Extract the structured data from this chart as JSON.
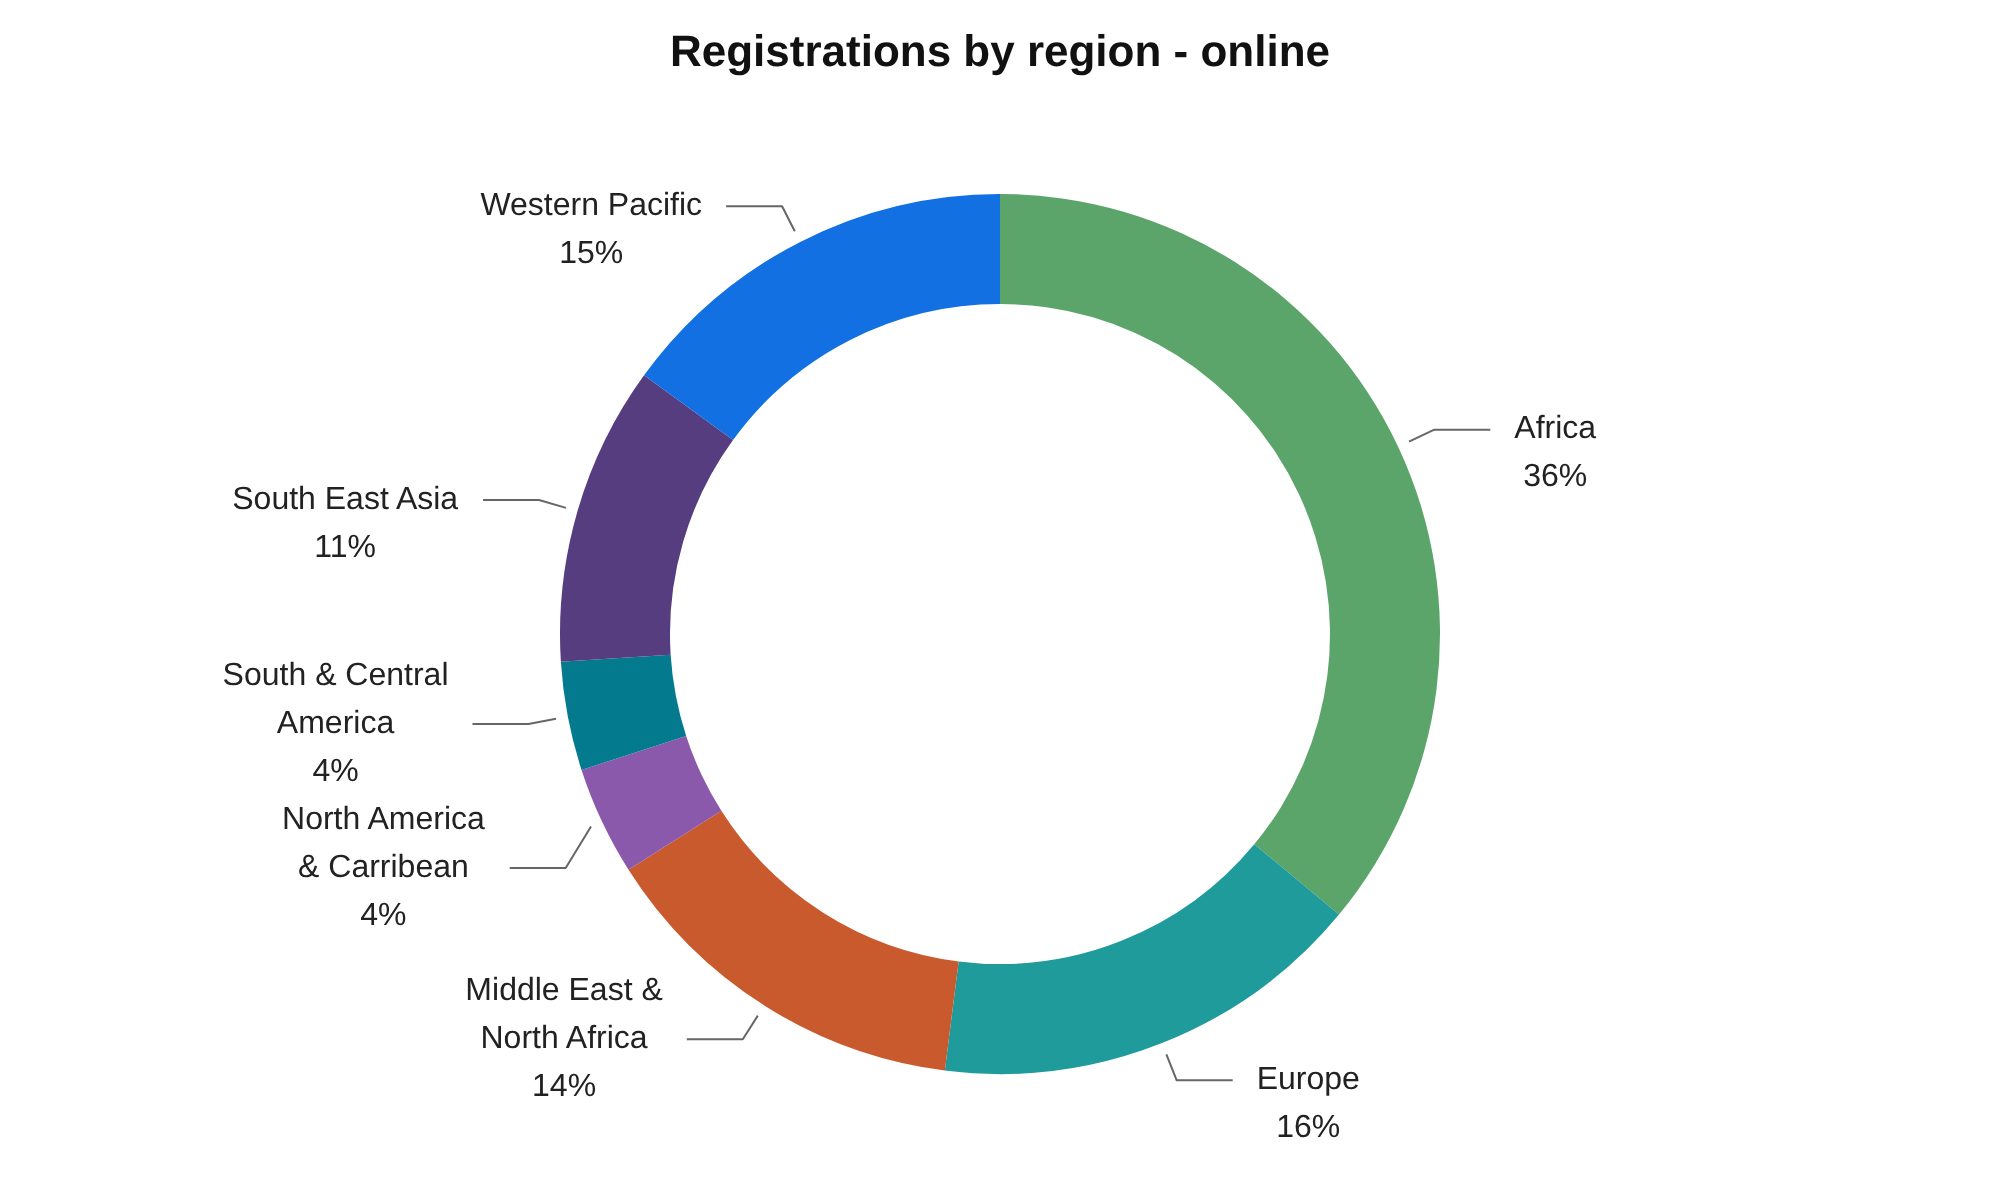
{
  "chart_data": {
    "type": "donut",
    "title": "Registrations by region - online",
    "categories": [
      "Africa",
      "Europe",
      "Middle East & North Africa",
      "North America & Carribean",
      "South & Central America",
      "South East Asia",
      "Western Pacific"
    ],
    "values": [
      36,
      16,
      14,
      4,
      4,
      11,
      15
    ],
    "colors": [
      "#5ba56a",
      "#1e9b9a",
      "#c85a2e",
      "#8a59ac",
      "#047a8f",
      "#553d80",
      "#1270e2"
    ],
    "value_labels": [
      "36%",
      "16%",
      "14%",
      "4%",
      "4%",
      "11%",
      "15%"
    ]
  }
}
